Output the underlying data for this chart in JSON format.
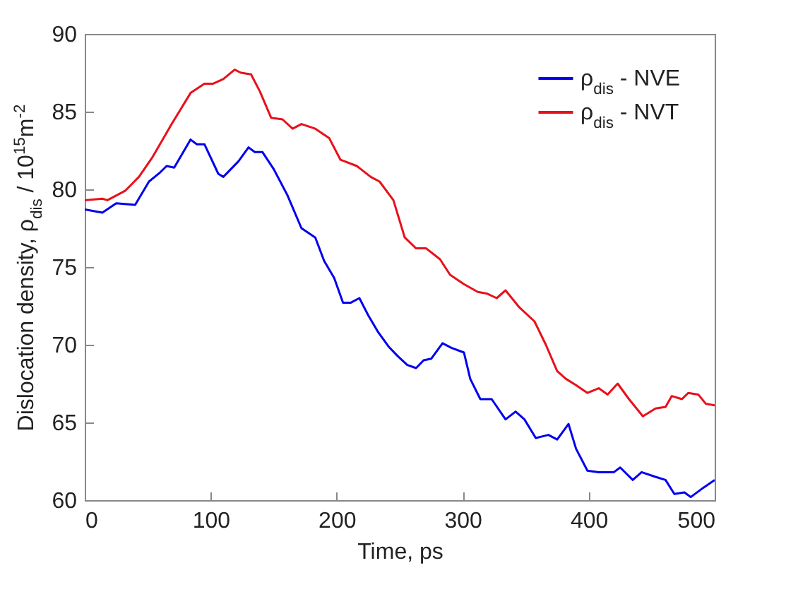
{
  "chart_data": {
    "type": "line",
    "xlabel": "Time, ps",
    "ylabel": "Dislocation density, ρ$_{dis}$ / 10$^{15}$m$^{-2}$",
    "xlim": [
      0,
      500
    ],
    "xticks": [
      0,
      100,
      200,
      300,
      400,
      500
    ],
    "ylim": [
      60,
      90
    ],
    "yticks": [
      60,
      65,
      70,
      75,
      80,
      85,
      90
    ],
    "grid": false,
    "legend": "top right",
    "line_style": "solid",
    "series": [
      {
        "name": "ρ$_{dis}$ - NVE",
        "color": "#0000ee",
        "x": [
          0,
          14,
          25,
          40,
          51,
          60,
          65,
          71,
          84,
          89,
          95,
          106,
          110,
          122,
          130,
          135,
          141,
          150,
          161,
          172,
          183,
          190,
          198,
          205,
          211,
          218,
          225,
          233,
          241,
          248,
          256,
          263,
          269,
          275,
          284,
          291,
          301,
          306,
          314,
          323,
          334,
          342,
          349,
          358,
          368,
          375,
          384,
          390,
          399,
          408,
          420,
          425,
          435,
          442,
          453,
          461,
          468,
          476,
          481,
          491,
          500
        ],
        "values": [
          78.7,
          78.5,
          79.1,
          79.0,
          80.5,
          81.1,
          81.5,
          81.4,
          83.2,
          82.9,
          82.9,
          81.0,
          80.8,
          81.8,
          82.7,
          82.4,
          82.4,
          81.3,
          79.6,
          77.5,
          76.9,
          75.4,
          74.3,
          72.7,
          72.7,
          73.0,
          71.9,
          70.8,
          69.9,
          69.3,
          68.7,
          68.5,
          69.0,
          69.1,
          70.1,
          69.8,
          69.5,
          67.8,
          66.5,
          66.5,
          65.2,
          65.7,
          65.2,
          64.0,
          64.2,
          63.9,
          64.9,
          63.3,
          61.9,
          61.8,
          61.8,
          62.1,
          61.3,
          61.8,
          61.5,
          61.3,
          60.4,
          60.5,
          60.2,
          60.8,
          61.3
        ]
      },
      {
        "name": "ρ$_{dis}$ - NVT",
        "color": "#e8101a",
        "x": [
          0,
          14,
          18,
          32,
          43,
          54,
          69,
          84,
          95,
          102,
          110,
          119,
          124,
          132,
          139,
          148,
          157,
          165,
          172,
          183,
          194,
          203,
          216,
          227,
          234,
          245,
          254,
          263,
          271,
          282,
          290,
          301,
          312,
          319,
          327,
          334,
          345,
          357,
          366,
          375,
          382,
          390,
          399,
          408,
          415,
          423,
          432,
          443,
          453,
          461,
          466,
          474,
          479,
          487,
          493,
          500
        ],
        "values": [
          79.3,
          79.4,
          79.3,
          79.9,
          80.8,
          82.1,
          84.2,
          86.2,
          86.8,
          86.8,
          87.1,
          87.7,
          87.5,
          87.4,
          86.3,
          84.6,
          84.5,
          83.9,
          84.2,
          83.9,
          83.3,
          81.9,
          81.5,
          80.8,
          80.5,
          79.3,
          76.9,
          76.2,
          76.2,
          75.5,
          74.5,
          73.9,
          73.4,
          73.3,
          73.0,
          73.5,
          72.4,
          71.5,
          70.0,
          68.3,
          67.8,
          67.4,
          66.9,
          67.2,
          66.8,
          67.5,
          66.5,
          65.4,
          65.9,
          66.0,
          66.7,
          66.5,
          66.9,
          66.8,
          66.2,
          66.1
        ]
      }
    ]
  }
}
